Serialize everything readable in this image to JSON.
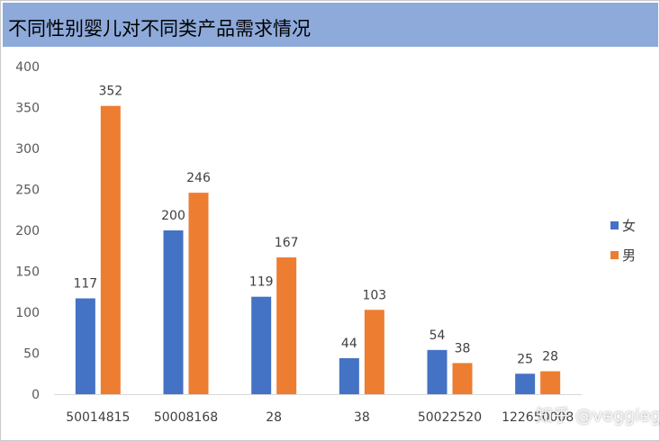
{
  "chart_data": {
    "type": "bar",
    "title": "不同性别婴儿对不同类产品需求情况",
    "categories": [
      "50014815",
      "50008168",
      "28",
      "38",
      "50022520",
      "122650008"
    ],
    "series": [
      {
        "name": "女",
        "values": [
          117,
          200,
          119,
          44,
          54,
          25
        ],
        "color": "#4472c4"
      },
      {
        "name": "男",
        "values": [
          352,
          246,
          167,
          103,
          38,
          28
        ],
        "color": "#ed7d31"
      }
    ],
    "ylim": [
      0,
      400
    ],
    "yticks": [
      0,
      50,
      100,
      150,
      200,
      250,
      300,
      350,
      400
    ],
    "xlabel": "",
    "ylabel": "",
    "grid": false,
    "legend_position": "right",
    "data_labels": true
  },
  "header_color": "#8eaadb",
  "watermark": "知乎 @veggieg"
}
